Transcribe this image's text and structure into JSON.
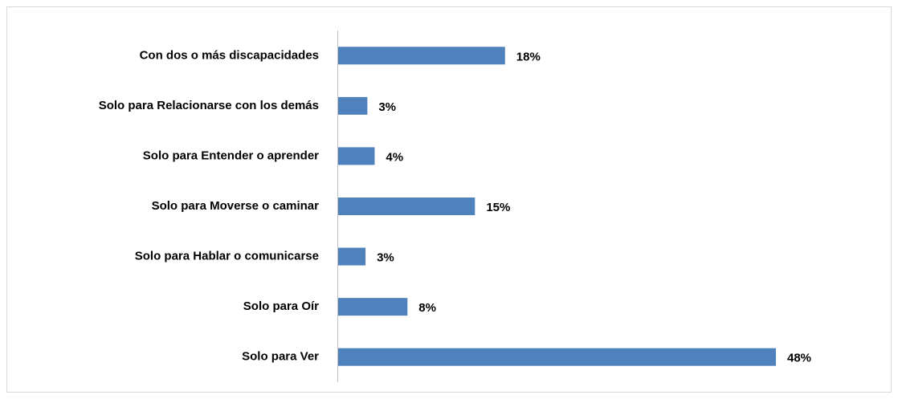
{
  "chart_data": {
    "type": "bar",
    "orientation": "horizontal",
    "categories": [
      "Con dos o más discapacidades",
      "Solo para Relacionarse con los demás",
      "Solo para Entender o aprender",
      "Solo para Moverse o caminar",
      "Solo para Hablar o comunicarse",
      "Solo para Oír",
      "Solo para Ver"
    ],
    "values": [
      18.3,
      3.2,
      4.0,
      15.0,
      3.0,
      7.6,
      48.0
    ],
    "value_labels": [
      "18%",
      "3%",
      "4%",
      "15%",
      "3%",
      "8%",
      "48%"
    ],
    "color": "#4f81bd"
  }
}
